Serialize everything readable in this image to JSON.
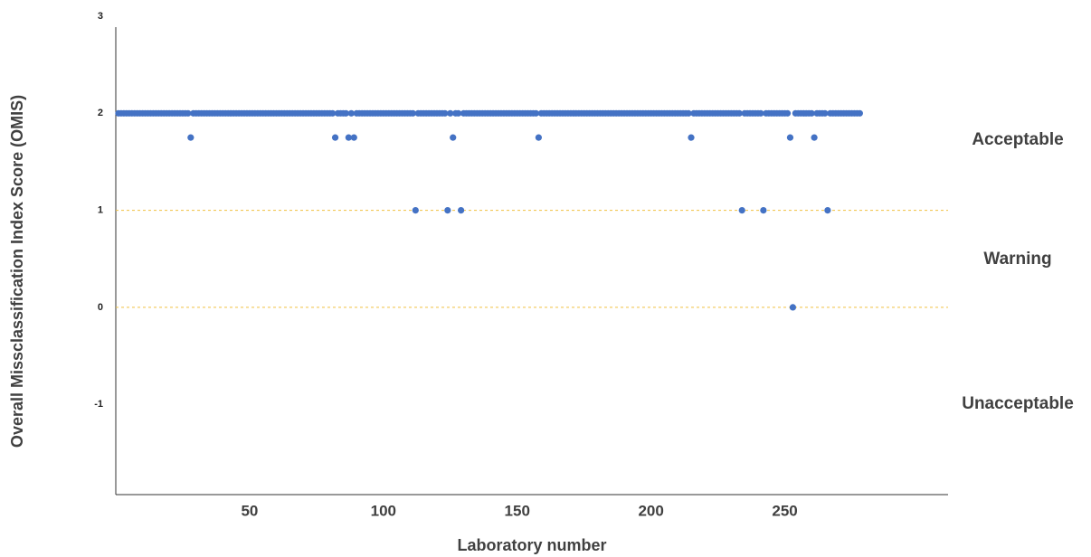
{
  "chart_data": {
    "type": "scatter",
    "x_label": "Laboratory number",
    "y_label": "Overall Missclassification Index Score (OMIS)",
    "xlim": [
      0,
      311
    ],
    "ylim": [
      -1.93,
      3
    ],
    "xticks": [
      50,
      100,
      150,
      200,
      250
    ],
    "yticks": [
      3,
      2,
      1,
      0,
      -1
    ],
    "reference_lines": [
      1,
      0
    ],
    "reference_color": "#f0c040",
    "annotations": [
      "Acceptable",
      "Warning",
      "Unacceptable"
    ],
    "series": [
      {
        "color": "#4472c4",
        "x": [
          1,
          2,
          3,
          4,
          5,
          6,
          7,
          8,
          9,
          10,
          11,
          12,
          13,
          14,
          15,
          16,
          17,
          18,
          19,
          20,
          21,
          22,
          23,
          24,
          25,
          26,
          27,
          28,
          29,
          30,
          31,
          32,
          33,
          34,
          35,
          36,
          37,
          38,
          39,
          40,
          41,
          42,
          43,
          44,
          45,
          46,
          47,
          48,
          49,
          50,
          51,
          52,
          53,
          54,
          55,
          56,
          57,
          58,
          59,
          60,
          61,
          62,
          63,
          64,
          65,
          66,
          67,
          68,
          69,
          70,
          71,
          72,
          73,
          74,
          75,
          76,
          77,
          78,
          79,
          80,
          81,
          82,
          83,
          84,
          85,
          86,
          87,
          88,
          89,
          90,
          91,
          92,
          93,
          94,
          95,
          96,
          97,
          98,
          99,
          100,
          101,
          102,
          103,
          104,
          105,
          106,
          107,
          108,
          109,
          110,
          111,
          112,
          113,
          114,
          115,
          116,
          117,
          118,
          119,
          120,
          121,
          122,
          123,
          124,
          125,
          126,
          127,
          128,
          129,
          130,
          131,
          132,
          133,
          134,
          135,
          136,
          137,
          138,
          139,
          140,
          141,
          142,
          143,
          144,
          145,
          146,
          147,
          148,
          149,
          150,
          151,
          152,
          153,
          154,
          155,
          156,
          157,
          158,
          159,
          160,
          161,
          162,
          163,
          164,
          165,
          166,
          167,
          168,
          169,
          170,
          171,
          172,
          173,
          174,
          175,
          176,
          177,
          178,
          179,
          180,
          181,
          182,
          183,
          184,
          185,
          186,
          187,
          188,
          189,
          190,
          191,
          192,
          193,
          194,
          195,
          196,
          197,
          198,
          199,
          200,
          201,
          202,
          203,
          204,
          205,
          206,
          207,
          208,
          209,
          210,
          211,
          212,
          213,
          214,
          215,
          216,
          217,
          218,
          219,
          220,
          221,
          222,
          223,
          224,
          225,
          226,
          227,
          228,
          229,
          230,
          231,
          232,
          233,
          234,
          235,
          236,
          237,
          238,
          239,
          240,
          241,
          242,
          243,
          244,
          245,
          246,
          247,
          248,
          249,
          250,
          251,
          252,
          253,
          254,
          255,
          256,
          257,
          258,
          259,
          260,
          261,
          262,
          263,
          264,
          265,
          266,
          267,
          268,
          269,
          270,
          271,
          272,
          273,
          274,
          275,
          276,
          277,
          278
        ],
        "values": [
          2,
          2,
          2,
          2,
          2,
          2,
          2,
          2,
          2,
          2,
          2,
          2,
          2,
          2,
          2,
          2,
          2,
          2,
          2,
          2,
          2,
          2,
          2,
          2,
          2,
          2,
          2,
          1.75,
          2,
          2,
          2,
          2,
          2,
          2,
          2,
          2,
          2,
          2,
          2,
          2,
          2,
          2,
          2,
          2,
          2,
          2,
          2,
          2,
          2,
          2,
          2,
          2,
          2,
          2,
          2,
          2,
          2,
          2,
          2,
          2,
          2,
          2,
          2,
          2,
          2,
          2,
          2,
          2,
          2,
          2,
          2,
          2,
          2,
          2,
          2,
          2,
          2,
          2,
          2,
          2,
          2,
          1.75,
          2,
          2,
          2,
          2,
          1.75,
          2,
          1.75,
          2,
          2,
          2,
          2,
          2,
          2,
          2,
          2,
          2,
          2,
          2,
          2,
          2,
          2,
          2,
          2,
          2,
          2,
          2,
          2,
          2,
          2,
          1,
          2,
          2,
          2,
          2,
          2,
          2,
          2,
          2,
          2,
          2,
          2,
          1,
          2,
          1.75,
          2,
          2,
          1,
          2,
          2,
          2,
          2,
          2,
          2,
          2,
          2,
          2,
          2,
          2,
          2,
          2,
          2,
          2,
          2,
          2,
          2,
          2,
          2,
          2,
          2,
          2,
          2,
          2,
          2,
          2,
          2,
          1.75,
          2,
          2,
          2,
          2,
          2,
          2,
          2,
          2,
          2,
          2,
          2,
          2,
          2,
          2,
          2,
          2,
          2,
          2,
          2,
          2,
          2,
          2,
          2,
          2,
          2,
          2,
          2,
          2,
          2,
          2,
          2,
          2,
          2,
          2,
          2,
          2,
          2,
          2,
          2,
          2,
          2,
          2,
          2,
          2,
          2,
          2,
          2,
          2,
          2,
          2,
          2,
          2,
          2,
          2,
          2,
          2,
          1.75,
          2,
          2,
          2,
          2,
          2,
          2,
          2,
          2,
          2,
          2,
          2,
          2,
          2,
          2,
          2,
          2,
          2,
          2,
          1,
          2,
          2,
          2,
          2,
          2,
          2,
          2,
          1,
          2,
          2,
          2,
          2,
          2,
          2,
          2,
          2,
          2,
          1.75,
          0,
          2,
          2,
          2,
          2,
          2,
          2,
          2,
          1.75,
          2,
          2,
          2,
          2,
          1,
          2,
          2,
          2,
          2,
          2,
          2,
          2,
          2,
          2,
          2,
          2,
          2
        ]
      }
    ]
  }
}
